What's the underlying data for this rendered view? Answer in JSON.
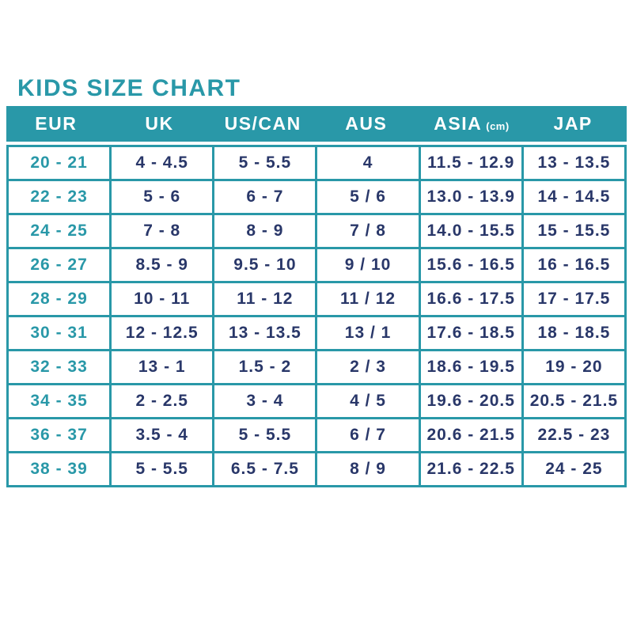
{
  "title": "KIDS SIZE CHART",
  "colors": {
    "teal": "#2998A8",
    "navy": "#293769",
    "header_text": "#FFFFFF",
    "background": "#FFFFFF"
  },
  "chart_data": {
    "type": "table",
    "title": "KIDS SIZE CHART",
    "legend_position": "none",
    "columns": [
      {
        "label": "EUR",
        "sub": ""
      },
      {
        "label": "UK",
        "sub": ""
      },
      {
        "label": "US/CAN",
        "sub": ""
      },
      {
        "label": "AUS",
        "sub": ""
      },
      {
        "label": "ASIA",
        "sub": "(cm)"
      },
      {
        "label": "JAP",
        "sub": ""
      }
    ],
    "rows": [
      [
        "20 - 21",
        "4 - 4.5",
        "5 - 5.5",
        "4",
        "11.5 - 12.9",
        "13 - 13.5"
      ],
      [
        "22 - 23",
        "5 - 6",
        "6 - 7",
        "5 / 6",
        "13.0 - 13.9",
        "14 - 14.5"
      ],
      [
        "24 - 25",
        "7 - 8",
        "8 - 9",
        "7 / 8",
        "14.0 - 15.5",
        "15 - 15.5"
      ],
      [
        "26 - 27",
        "8.5 - 9",
        "9.5 - 10",
        "9 / 10",
        "15.6 - 16.5",
        "16 - 16.5"
      ],
      [
        "28 - 29",
        "10 - 11",
        "11 - 12",
        "11 / 12",
        "16.6 - 17.5",
        "17 - 17.5"
      ],
      [
        "30 - 31",
        "12 - 12.5",
        "13 - 13.5",
        "13 / 1",
        "17.6 - 18.5",
        "18 - 18.5"
      ],
      [
        "32 - 33",
        "13 - 1",
        "1.5 - 2",
        "2 / 3",
        "18.6 - 19.5",
        "19 - 20"
      ],
      [
        "34 - 35",
        "2 - 2.5",
        "3 - 4",
        "4 / 5",
        "19.6 - 20.5",
        "20.5 - 21.5"
      ],
      [
        "36 - 37",
        "3.5 - 4",
        "5 - 5.5",
        "6 / 7",
        "20.6 - 21.5",
        "22.5 - 23"
      ],
      [
        "38 - 39",
        "5 - 5.5",
        "6.5 - 7.5",
        "8 / 9",
        "21.6 - 22.5",
        "24 - 25"
      ]
    ]
  }
}
